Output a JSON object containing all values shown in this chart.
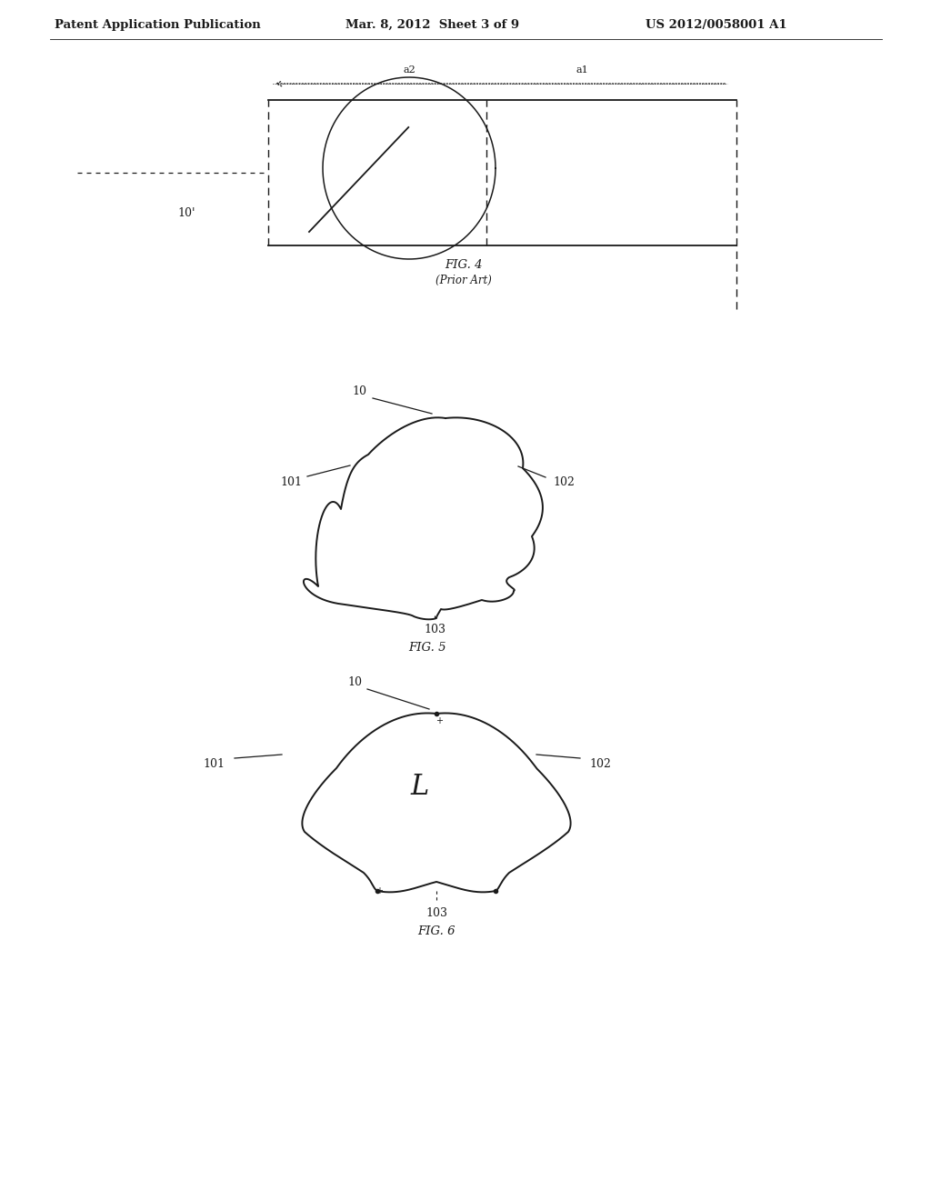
{
  "header_left": "Patent Application Publication",
  "header_mid": "Mar. 8, 2012  Sheet 3 of 9",
  "header_right": "US 2012/0058001 A1",
  "fig4_caption": "FIG. 4",
  "fig4_subcaption": "(Prior Art)",
  "fig5_caption": "FIG. 5",
  "fig6_caption": "FIG. 6",
  "bg_color": "#ffffff",
  "line_color": "#1a1a1a",
  "fig4_label": "10'",
  "fig5_label_main": "10",
  "fig5_label_101": "101",
  "fig5_label_102": "102",
  "fig5_label_103": "103",
  "fig6_label_main": "10",
  "fig6_label_101": "101",
  "fig6_label_102": "102",
  "fig6_label_103": "103"
}
